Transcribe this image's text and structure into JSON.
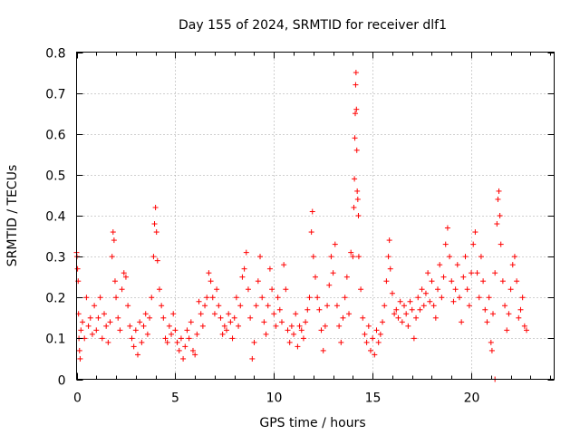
{
  "chart_data": {
    "type": "scatter",
    "title": "Day 155 of 2024, SRMTID for receiver dlf1",
    "xlabel": "GPS time / hours",
    "ylabel": "SRMTID / TECUs",
    "xlim": [
      0,
      24.2
    ],
    "ylim": [
      0,
      0.8
    ],
    "x_ticks": [
      0,
      5,
      10,
      15,
      20
    ],
    "y_ticks": [
      0,
      0.1,
      0.2,
      0.3,
      0.4,
      0.5,
      0.6,
      0.7,
      0.8
    ],
    "x_tick_labels": [
      "0",
      "5",
      "10",
      "15",
      "20"
    ],
    "y_tick_labels": [
      "0",
      "0.1",
      "0.2",
      "0.3",
      "0.4",
      "0.5",
      "0.6",
      "0.7",
      "0.8"
    ],
    "grid": true,
    "marker": "+",
    "color": "#ff0000",
    "series": [
      {
        "name": "SRMTID",
        "points": [
          [
            0.0,
            0.31
          ],
          [
            0.02,
            0.3
          ],
          [
            0.05,
            0.27
          ],
          [
            0.08,
            0.24
          ],
          [
            0.1,
            0.16
          ],
          [
            0.12,
            0.1
          ],
          [
            0.15,
            0.07
          ],
          [
            0.18,
            0.05
          ],
          [
            0.22,
            0.12
          ],
          [
            0.3,
            0.14
          ],
          [
            0.4,
            0.1
          ],
          [
            0.5,
            0.2
          ],
          [
            0.6,
            0.13
          ],
          [
            0.7,
            0.15
          ],
          [
            0.8,
            0.11
          ],
          [
            0.9,
            0.18
          ],
          [
            1.0,
            0.12
          ],
          [
            1.1,
            0.15
          ],
          [
            1.2,
            0.2
          ],
          [
            1.3,
            0.1
          ],
          [
            1.4,
            0.16
          ],
          [
            1.5,
            0.13
          ],
          [
            1.6,
            0.09
          ],
          [
            1.7,
            0.14
          ],
          [
            1.8,
            0.3
          ],
          [
            1.85,
            0.36
          ],
          [
            1.9,
            0.34
          ],
          [
            1.95,
            0.24
          ],
          [
            2.0,
            0.2
          ],
          [
            2.1,
            0.15
          ],
          [
            2.2,
            0.12
          ],
          [
            2.3,
            0.22
          ],
          [
            2.4,
            0.26
          ],
          [
            2.5,
            0.25
          ],
          [
            2.6,
            0.18
          ],
          [
            2.7,
            0.13
          ],
          [
            2.8,
            0.1
          ],
          [
            2.9,
            0.08
          ],
          [
            3.0,
            0.12
          ],
          [
            3.1,
            0.06
          ],
          [
            3.2,
            0.14
          ],
          [
            3.3,
            0.09
          ],
          [
            3.4,
            0.13
          ],
          [
            3.5,
            0.16
          ],
          [
            3.6,
            0.11
          ],
          [
            3.7,
            0.15
          ],
          [
            3.8,
            0.2
          ],
          [
            3.9,
            0.3
          ],
          [
            3.95,
            0.38
          ],
          [
            4.0,
            0.42
          ],
          [
            4.05,
            0.36
          ],
          [
            4.1,
            0.29
          ],
          [
            4.2,
            0.22
          ],
          [
            4.3,
            0.18
          ],
          [
            4.4,
            0.15
          ],
          [
            4.5,
            0.1
          ],
          [
            4.6,
            0.09
          ],
          [
            4.7,
            0.13
          ],
          [
            4.8,
            0.11
          ],
          [
            4.9,
            0.16
          ],
          [
            5.0,
            0.12
          ],
          [
            5.1,
            0.09
          ],
          [
            5.2,
            0.07
          ],
          [
            5.3,
            0.1
          ],
          [
            5.4,
            0.05
          ],
          [
            5.5,
            0.08
          ],
          [
            5.6,
            0.12
          ],
          [
            5.7,
            0.1
          ],
          [
            5.8,
            0.14
          ],
          [
            5.9,
            0.07
          ],
          [
            6.0,
            0.06
          ],
          [
            6.1,
            0.11
          ],
          [
            6.2,
            0.19
          ],
          [
            6.3,
            0.16
          ],
          [
            6.4,
            0.13
          ],
          [
            6.5,
            0.18
          ],
          [
            6.6,
            0.2
          ],
          [
            6.7,
            0.26
          ],
          [
            6.8,
            0.24
          ],
          [
            6.9,
            0.2
          ],
          [
            7.0,
            0.16
          ],
          [
            7.1,
            0.22
          ],
          [
            7.2,
            0.18
          ],
          [
            7.3,
            0.15
          ],
          [
            7.4,
            0.11
          ],
          [
            7.5,
            0.13
          ],
          [
            7.6,
            0.12
          ],
          [
            7.7,
            0.16
          ],
          [
            7.8,
            0.14
          ],
          [
            7.9,
            0.1
          ],
          [
            8.0,
            0.15
          ],
          [
            8.1,
            0.2
          ],
          [
            8.2,
            0.13
          ],
          [
            8.3,
            0.18
          ],
          [
            8.4,
            0.25
          ],
          [
            8.5,
            0.27
          ],
          [
            8.6,
            0.31
          ],
          [
            8.7,
            0.22
          ],
          [
            8.8,
            0.15
          ],
          [
            8.9,
            0.05
          ],
          [
            9.0,
            0.09
          ],
          [
            9.1,
            0.18
          ],
          [
            9.2,
            0.24
          ],
          [
            9.3,
            0.3
          ],
          [
            9.4,
            0.2
          ],
          [
            9.5,
            0.14
          ],
          [
            9.6,
            0.11
          ],
          [
            9.7,
            0.18
          ],
          [
            9.8,
            0.27
          ],
          [
            9.9,
            0.22
          ],
          [
            10.0,
            0.16
          ],
          [
            10.1,
            0.13
          ],
          [
            10.2,
            0.2
          ],
          [
            10.3,
            0.17
          ],
          [
            10.4,
            0.14
          ],
          [
            10.5,
            0.28
          ],
          [
            10.6,
            0.22
          ],
          [
            10.7,
            0.12
          ],
          [
            10.8,
            0.09
          ],
          [
            10.9,
            0.13
          ],
          [
            11.0,
            0.11
          ],
          [
            11.1,
            0.16
          ],
          [
            11.2,
            0.08
          ],
          [
            11.3,
            0.13
          ],
          [
            11.4,
            0.12
          ],
          [
            11.5,
            0.1
          ],
          [
            11.6,
            0.14
          ],
          [
            11.7,
            0.17
          ],
          [
            11.8,
            0.2
          ],
          [
            11.9,
            0.36
          ],
          [
            11.95,
            0.41
          ],
          [
            12.0,
            0.3
          ],
          [
            12.1,
            0.25
          ],
          [
            12.2,
            0.2
          ],
          [
            12.3,
            0.17
          ],
          [
            12.4,
            0.12
          ],
          [
            12.5,
            0.07
          ],
          [
            12.6,
            0.13
          ],
          [
            12.7,
            0.18
          ],
          [
            12.8,
            0.23
          ],
          [
            12.9,
            0.3
          ],
          [
            13.0,
            0.26
          ],
          [
            13.1,
            0.33
          ],
          [
            13.2,
            0.18
          ],
          [
            13.3,
            0.13
          ],
          [
            13.4,
            0.09
          ],
          [
            13.5,
            0.15
          ],
          [
            13.6,
            0.2
          ],
          [
            13.7,
            0.25
          ],
          [
            13.8,
            0.16
          ],
          [
            13.9,
            0.31
          ],
          [
            14.0,
            0.3
          ],
          [
            14.05,
            0.42
          ],
          [
            14.08,
            0.49
          ],
          [
            14.1,
            0.59
          ],
          [
            14.12,
            0.65
          ],
          [
            14.14,
            0.72
          ],
          [
            14.16,
            0.75
          ],
          [
            14.18,
            0.66
          ],
          [
            14.2,
            0.56
          ],
          [
            14.22,
            0.46
          ],
          [
            14.25,
            0.44
          ],
          [
            14.28,
            0.4
          ],
          [
            14.3,
            0.3
          ],
          [
            14.4,
            0.22
          ],
          [
            14.5,
            0.15
          ],
          [
            14.6,
            0.11
          ],
          [
            14.7,
            0.09
          ],
          [
            14.8,
            0.13
          ],
          [
            14.9,
            0.07
          ],
          [
            15.0,
            0.1
          ],
          [
            15.1,
            0.06
          ],
          [
            15.2,
            0.12
          ],
          [
            15.3,
            0.09
          ],
          [
            15.4,
            0.11
          ],
          [
            15.5,
            0.14
          ],
          [
            15.6,
            0.18
          ],
          [
            15.7,
            0.24
          ],
          [
            15.8,
            0.3
          ],
          [
            15.85,
            0.34
          ],
          [
            15.9,
            0.27
          ],
          [
            16.0,
            0.21
          ],
          [
            16.1,
            0.16
          ],
          [
            16.2,
            0.17
          ],
          [
            16.3,
            0.15
          ],
          [
            16.4,
            0.19
          ],
          [
            16.5,
            0.14
          ],
          [
            16.6,
            0.18
          ],
          [
            16.7,
            0.16
          ],
          [
            16.8,
            0.13
          ],
          [
            16.9,
            0.19
          ],
          [
            17.0,
            0.17
          ],
          [
            17.1,
            0.1
          ],
          [
            17.2,
            0.15
          ],
          [
            17.3,
            0.2
          ],
          [
            17.4,
            0.17
          ],
          [
            17.5,
            0.22
          ],
          [
            17.6,
            0.18
          ],
          [
            17.7,
            0.21
          ],
          [
            17.8,
            0.26
          ],
          [
            17.9,
            0.19
          ],
          [
            18.0,
            0.24
          ],
          [
            18.1,
            0.18
          ],
          [
            18.2,
            0.15
          ],
          [
            18.3,
            0.22
          ],
          [
            18.4,
            0.28
          ],
          [
            18.5,
            0.2
          ],
          [
            18.6,
            0.25
          ],
          [
            18.7,
            0.33
          ],
          [
            18.8,
            0.37
          ],
          [
            18.9,
            0.3
          ],
          [
            19.0,
            0.24
          ],
          [
            19.1,
            0.19
          ],
          [
            19.2,
            0.22
          ],
          [
            19.3,
            0.28
          ],
          [
            19.4,
            0.2
          ],
          [
            19.5,
            0.14
          ],
          [
            19.6,
            0.25
          ],
          [
            19.7,
            0.3
          ],
          [
            19.8,
            0.22
          ],
          [
            19.9,
            0.18
          ],
          [
            20.0,
            0.26
          ],
          [
            20.1,
            0.33
          ],
          [
            20.2,
            0.36
          ],
          [
            20.3,
            0.26
          ],
          [
            20.4,
            0.2
          ],
          [
            20.5,
            0.3
          ],
          [
            20.6,
            0.24
          ],
          [
            20.7,
            0.17
          ],
          [
            20.8,
            0.14
          ],
          [
            20.9,
            0.2
          ],
          [
            21.0,
            0.09
          ],
          [
            21.05,
            0.07
          ],
          [
            21.1,
            0.16
          ],
          [
            21.2,
            0.26
          ],
          [
            21.3,
            0.38
          ],
          [
            21.35,
            0.44
          ],
          [
            21.4,
            0.46
          ],
          [
            21.45,
            0.4
          ],
          [
            21.5,
            0.33
          ],
          [
            21.6,
            0.24
          ],
          [
            21.7,
            0.18
          ],
          [
            21.8,
            0.12
          ],
          [
            21.9,
            0.16
          ],
          [
            22.0,
            0.22
          ],
          [
            22.1,
            0.28
          ],
          [
            22.2,
            0.3
          ],
          [
            22.3,
            0.24
          ],
          [
            22.4,
            0.15
          ],
          [
            22.5,
            0.17
          ],
          [
            22.6,
            0.2
          ],
          [
            22.7,
            0.13
          ],
          [
            22.8,
            0.12
          ],
          [
            21.2,
            0.0
          ]
        ]
      }
    ]
  }
}
